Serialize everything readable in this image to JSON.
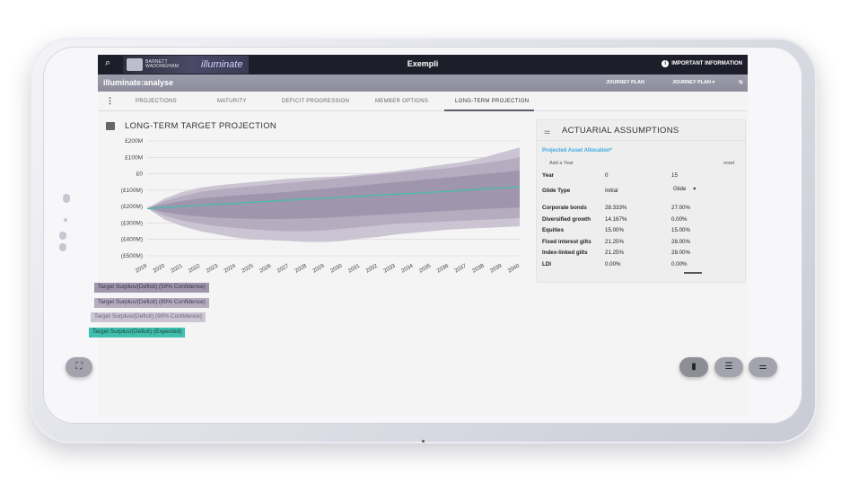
{
  "topbar": {
    "logo_text": "BARNETT WADDINGHAM",
    "logo_product": "illuminate",
    "title": "Exempli",
    "info_label": "IMPORTANT INFORMATION"
  },
  "subbar": {
    "app_name": "illuminate:analyse",
    "nav_1": "JOURNEY PLAN",
    "nav_2": "JOURNEY PLAN ▾",
    "nav_3": "⇆"
  },
  "tabs": [
    {
      "label": "PROJECTIONS"
    },
    {
      "label": "MATURITY"
    },
    {
      "label": "DEFICIT PROGRESSION"
    },
    {
      "label": "MEMBER OPTIONS"
    },
    {
      "label": "LONG-TERM PROJECTION",
      "active": true
    }
  ],
  "chart_title": "LONG-TERM TARGET PROJECTION",
  "chart_data": {
    "type": "area",
    "x": [
      2019,
      2020,
      2021,
      2022,
      2023,
      2024,
      2025,
      2026,
      2027,
      2028,
      2029,
      2030,
      2031,
      2032,
      2033,
      2034,
      2035,
      2036,
      2037,
      2038,
      2039,
      2040
    ],
    "x_tick_labels": [
      "2019",
      "2020",
      "2021",
      "2022",
      "2023",
      "2024",
      "2025",
      "2026",
      "2027",
      "2028",
      "2029",
      "2030",
      "2031",
      "2032",
      "2033",
      "2034",
      "2035",
      "2036",
      "2037",
      "2038",
      "2039",
      "2040"
    ],
    "y_tick_labels": [
      "£200M",
      "£100M",
      "£0",
      "(£100M)",
      "(£200M)",
      "(£300M)",
      "(£400M)",
      "(£500M)"
    ],
    "y_ticks": [
      200,
      100,
      0,
      -100,
      -200,
      -300,
      -400,
      -500
    ],
    "ylim": [
      -500,
      200
    ],
    "bands": [
      {
        "name": "Target Surplus/(Deficit) (90% Confidence)",
        "color": "#cbc4d2",
        "upper": [
          -210,
          -150,
          -110,
          -85,
          -70,
          -60,
          -50,
          -40,
          -30,
          -25,
          -20,
          -15,
          -5,
          5,
          15,
          30,
          45,
          60,
          75,
          100,
          130,
          160
        ],
        "lower": [
          -210,
          -280,
          -320,
          -350,
          -370,
          -390,
          -400,
          -405,
          -410,
          -415,
          -415,
          -410,
          -395,
          -385,
          -370,
          -360,
          -350,
          -340,
          -335,
          -330,
          -325,
          -320
        ]
      },
      {
        "name": "Target Surplus/(Deficit) (80% Confidence)",
        "color": "#b5acc0",
        "upper": [
          -210,
          -165,
          -135,
          -110,
          -95,
          -85,
          -75,
          -65,
          -55,
          -45,
          -35,
          -25,
          -15,
          -5,
          5,
          15,
          25,
          35,
          50,
          65,
          80,
          100
        ],
        "lower": [
          -210,
          -255,
          -285,
          -305,
          -320,
          -330,
          -340,
          -345,
          -350,
          -350,
          -345,
          -335,
          -325,
          -315,
          -305,
          -300,
          -295,
          -290,
          -285,
          -280,
          -275,
          -270
        ]
      },
      {
        "name": "Target Surplus/(Deficit) (50% Confidence)",
        "color": "#9f95ad",
        "upper": [
          -210,
          -185,
          -165,
          -150,
          -140,
          -132,
          -125,
          -118,
          -110,
          -100,
          -92,
          -82,
          -72,
          -62,
          -52,
          -42,
          -32,
          -22,
          -12,
          -2,
          8,
          20
        ],
        "lower": [
          -210,
          -235,
          -250,
          -260,
          -268,
          -272,
          -275,
          -276,
          -275,
          -272,
          -268,
          -262,
          -256,
          -250,
          -244,
          -238,
          -232,
          -226,
          -220,
          -214,
          -210,
          -205
        ]
      }
    ],
    "series": [
      {
        "name": "Target Surplus/(Deficit) (Expected)",
        "color": "#3fbfad",
        "values": [
          -213,
          -205,
          -198,
          -192,
          -186,
          -180,
          -173,
          -167,
          -161,
          -155,
          -149,
          -143,
          -137,
          -131,
          -125,
          -119,
          -113,
          -107,
          -100,
          -92,
          -86,
          -80
        ]
      }
    ]
  },
  "legend": [
    {
      "label": "Target Surplus/(Deficit) (50% Confidence)",
      "color": "#9f95ad",
      "text_color": "#3a3a4a"
    },
    {
      "label": "Target Surplus/(Deficit) (80% Confidence)",
      "color": "#b5acc0",
      "text_color": "#3a3a4a"
    },
    {
      "label": "Target Surplus/(Deficit) (90% Confidence)",
      "color": "#cbc4d2",
      "text_color": "#6a6a78"
    },
    {
      "label": "Target Surplus/(Deficit) (Expected)",
      "color": "#3fbfad",
      "text_color": "#1e3e3a"
    }
  ],
  "assumptions": {
    "title": "ACTUARIAL ASSUMPTIONS",
    "subtitle": "Projected Asset Allocation*",
    "add_year": "Add a Year",
    "reset": "reset",
    "year_label": "Year",
    "year_1": "0",
    "year_2": "15",
    "glide_label": "Glide Type",
    "glide_1": "Initial",
    "glide_2": "Glide",
    "glide_2_arrow": "▾",
    "rows": [
      {
        "label": "Corporate bonds",
        "v1": "28.333%",
        "v2": "27.00%"
      },
      {
        "label": "Diversified growth",
        "v1": "14.167%",
        "v2": "0.00%"
      },
      {
        "label": "Equities",
        "v1": "15.00%",
        "v2": "15.00%"
      },
      {
        "label": "Fixed interest gilts",
        "v1": "21.25%",
        "v2": "28.00%"
      },
      {
        "label": "Index-linked gilts",
        "v1": "21.25%",
        "v2": "28.00%"
      },
      {
        "label": "LDI",
        "v1": "0.00%",
        "v2": "0.00%"
      }
    ]
  },
  "fabs": {
    "expand": "⛶",
    "chart": "▮",
    "list": "☰",
    "sliders": "⚌"
  }
}
